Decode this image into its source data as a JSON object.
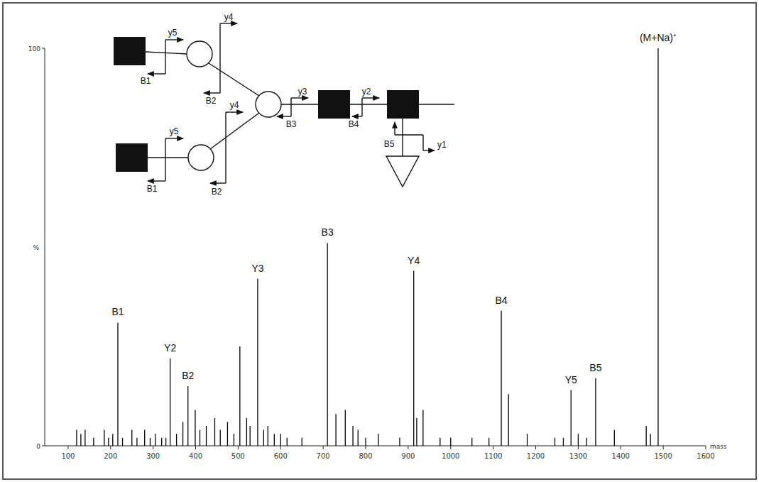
{
  "chart_data": {
    "type": "stem",
    "xlabel": "mass",
    "ylabel": "%",
    "xlim": [
      45,
      1600
    ],
    "ylim": [
      0,
      100
    ],
    "xticks": [
      100,
      200,
      300,
      400,
      500,
      600,
      700,
      800,
      900,
      1000,
      1100,
      1200,
      1300,
      1400,
      1500,
      1600
    ],
    "yticks": [
      0,
      100
    ],
    "grid": false,
    "color": "#000000",
    "x": [
      120,
      130,
      140,
      160,
      185,
      195,
      205,
      217,
      228,
      250,
      262,
      280,
      293,
      305,
      320,
      330,
      340,
      355,
      370,
      382,
      399,
      410,
      425,
      445,
      458,
      475,
      490,
      504,
      520,
      528,
      546,
      560,
      570,
      585,
      600,
      615,
      650,
      710,
      730,
      752,
      770,
      782,
      800,
      830,
      880,
      913,
      920,
      935,
      975,
      1000,
      1050,
      1090,
      1119,
      1136,
      1180,
      1245,
      1265,
      1283,
      1300,
      1320,
      1341,
      1385,
      1460,
      1470,
      1488
    ],
    "values": [
      4,
      3,
      4,
      2,
      4,
      2,
      3,
      31,
      2,
      4,
      2,
      4,
      2,
      3,
      2,
      2,
      22,
      3,
      6,
      15,
      9,
      4,
      5,
      7,
      4,
      6,
      3,
      25,
      7,
      5,
      42,
      4,
      5,
      3,
      3,
      2,
      2,
      51,
      8,
      9,
      5,
      4,
      2,
      3,
      2,
      44,
      7,
      9,
      2,
      2,
      2,
      2,
      34,
      13,
      3,
      2,
      2,
      14,
      3,
      2,
      17,
      4,
      5,
      3,
      100
    ],
    "peak_labels": [
      null,
      null,
      null,
      null,
      null,
      null,
      null,
      "B1",
      null,
      null,
      null,
      null,
      null,
      null,
      null,
      null,
      "Y2",
      null,
      null,
      "B2",
      null,
      null,
      null,
      null,
      null,
      null,
      null,
      null,
      null,
      null,
      "Y3",
      null,
      null,
      null,
      null,
      null,
      null,
      "B3",
      null,
      null,
      null,
      null,
      null,
      null,
      null,
      "Y4",
      null,
      null,
      null,
      null,
      null,
      null,
      "B4",
      null,
      null,
      null,
      null,
      "Y5",
      null,
      null,
      "B5",
      null,
      null,
      null,
      "(M+Na)⁺"
    ]
  },
  "diagram": {
    "labels": [
      "y5",
      "y4",
      "B1",
      "B2",
      "y5",
      "y4",
      "B1",
      "B2",
      "y3",
      "B3",
      "y2",
      "B4",
      "B5",
      "y1"
    ]
  }
}
